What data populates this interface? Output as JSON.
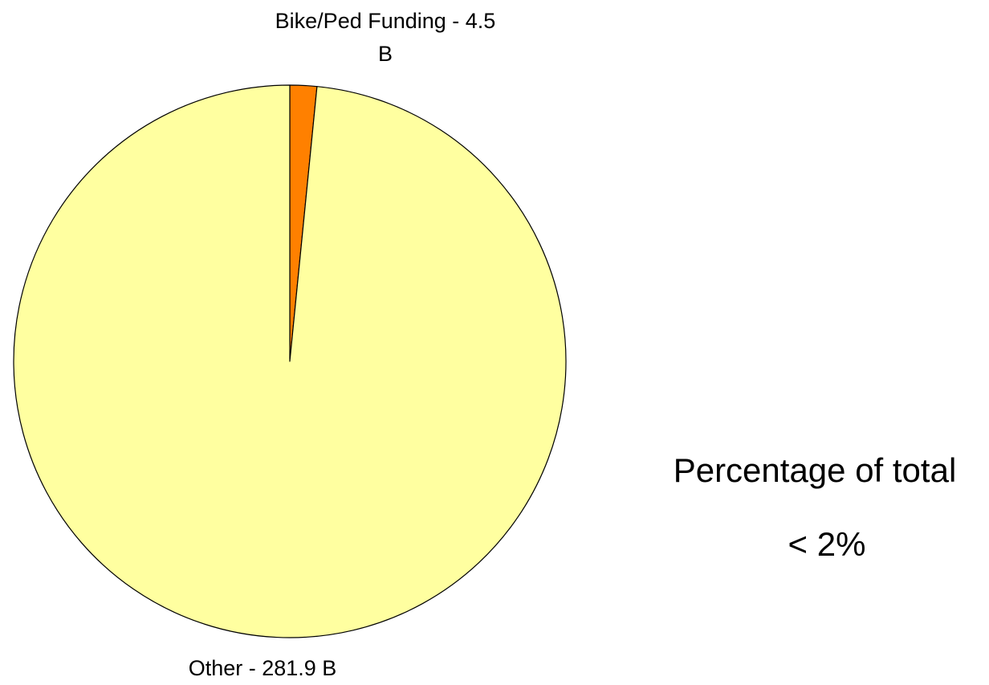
{
  "chart_data": {
    "type": "pie",
    "categories": [
      "Bike/Ped Funding",
      "Other"
    ],
    "values": [
      4.5,
      281.9
    ],
    "value_labels": [
      "Bike/Ped Funding - 4.5 B",
      "Other - 281.9 B"
    ],
    "colors": [
      "#ff8000",
      "#ffffa0"
    ],
    "annotations": [
      "Percentage of total",
      "< 2%"
    ]
  }
}
